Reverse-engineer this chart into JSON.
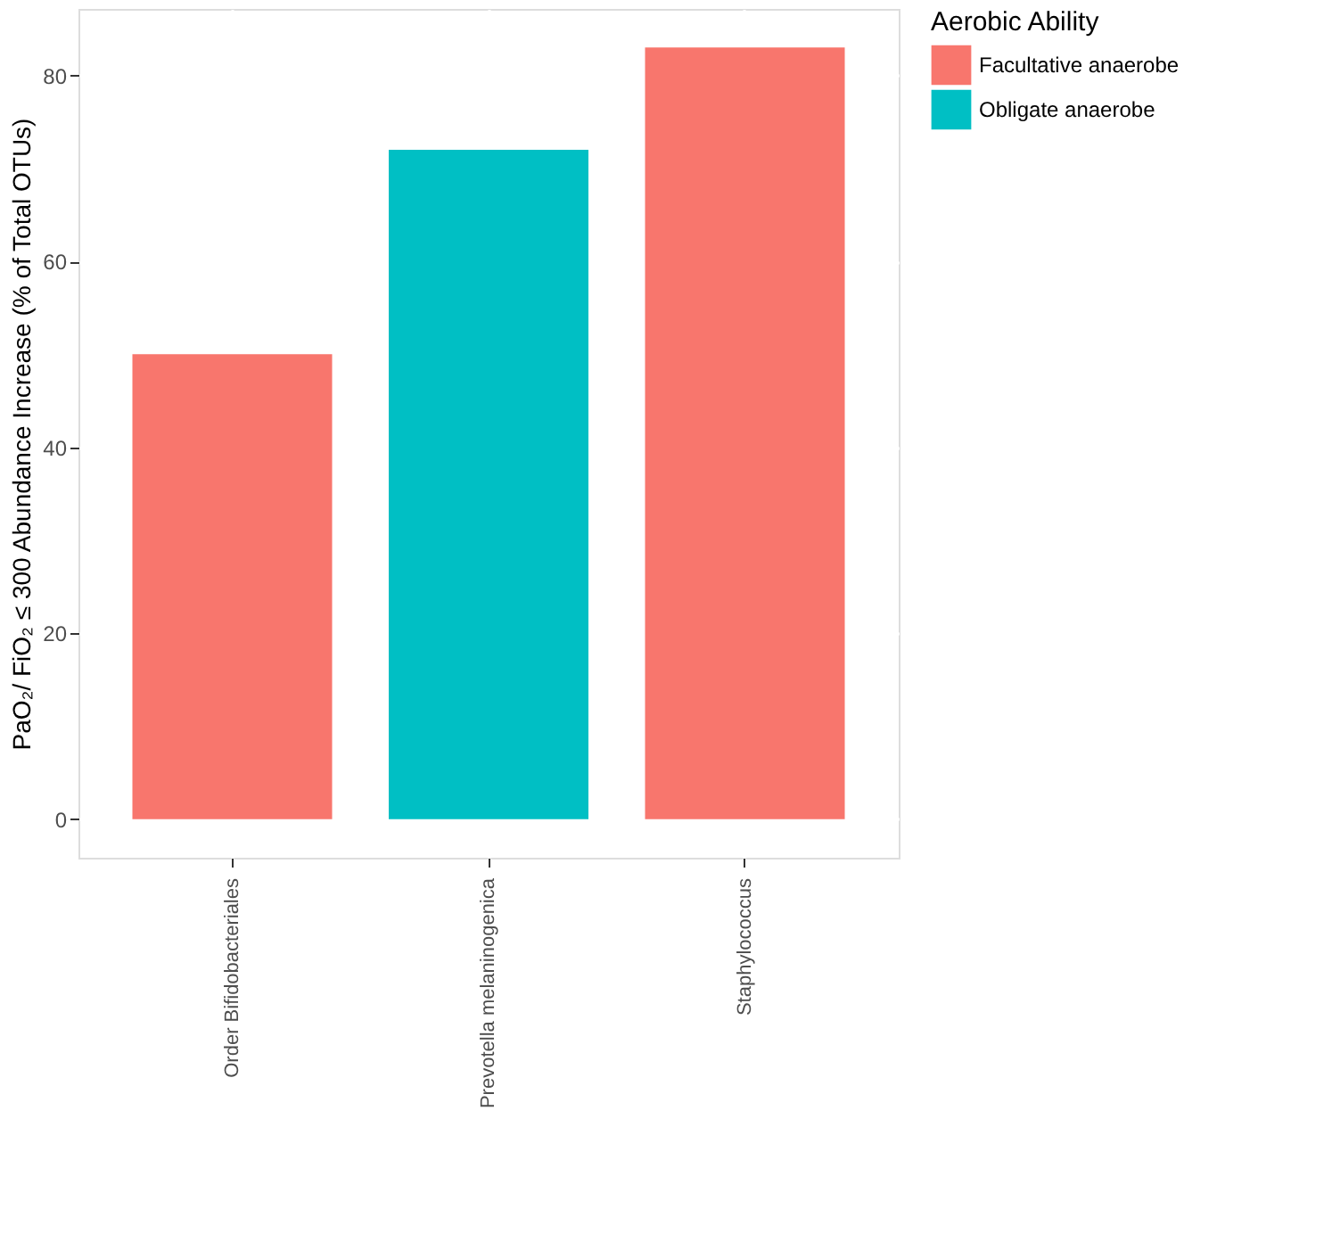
{
  "chart_data": {
    "type": "bar",
    "ylabel": "PaO₂/ FiO₂ ≤ 300 Abundance Increase (% of Total OTUs)",
    "legend_title": "Aerobic Ability",
    "categories": [
      "Order Bifidobacteriales",
      "Prevotella melaninogenica",
      "Staphylococcus"
    ],
    "series": [
      {
        "name": "Facultative anaerobe",
        "color": "#f8766d",
        "values": [
          50,
          null,
          83
        ]
      },
      {
        "name": "Obligate anaerobe",
        "color": "#00bfc4",
        "values": [
          null,
          72,
          null
        ]
      }
    ],
    "ylim": [
      -4.15,
      87.15
    ],
    "yticks": [
      0,
      20,
      40,
      60,
      80
    ],
    "grid": true,
    "legend": "right"
  }
}
